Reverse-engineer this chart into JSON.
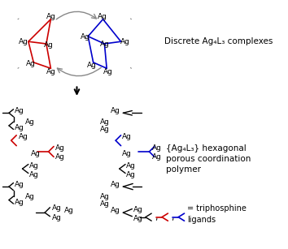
{
  "title": "",
  "bg_color": "#ffffff",
  "text_color": "#000000",
  "red_color": "#cc0000",
  "blue_color": "#0000cc",
  "gray_color": "#888888",
  "black_color": "#000000",
  "label_discrete": "Discrete Ag₄L₃ complexes",
  "label_polymer_line1": "{Ag₄L₃} hexagonal",
  "label_polymer_line2": "porous coordination",
  "label_polymer_line3": "polymer",
  "label_legend": "= triphosphine\nligands"
}
